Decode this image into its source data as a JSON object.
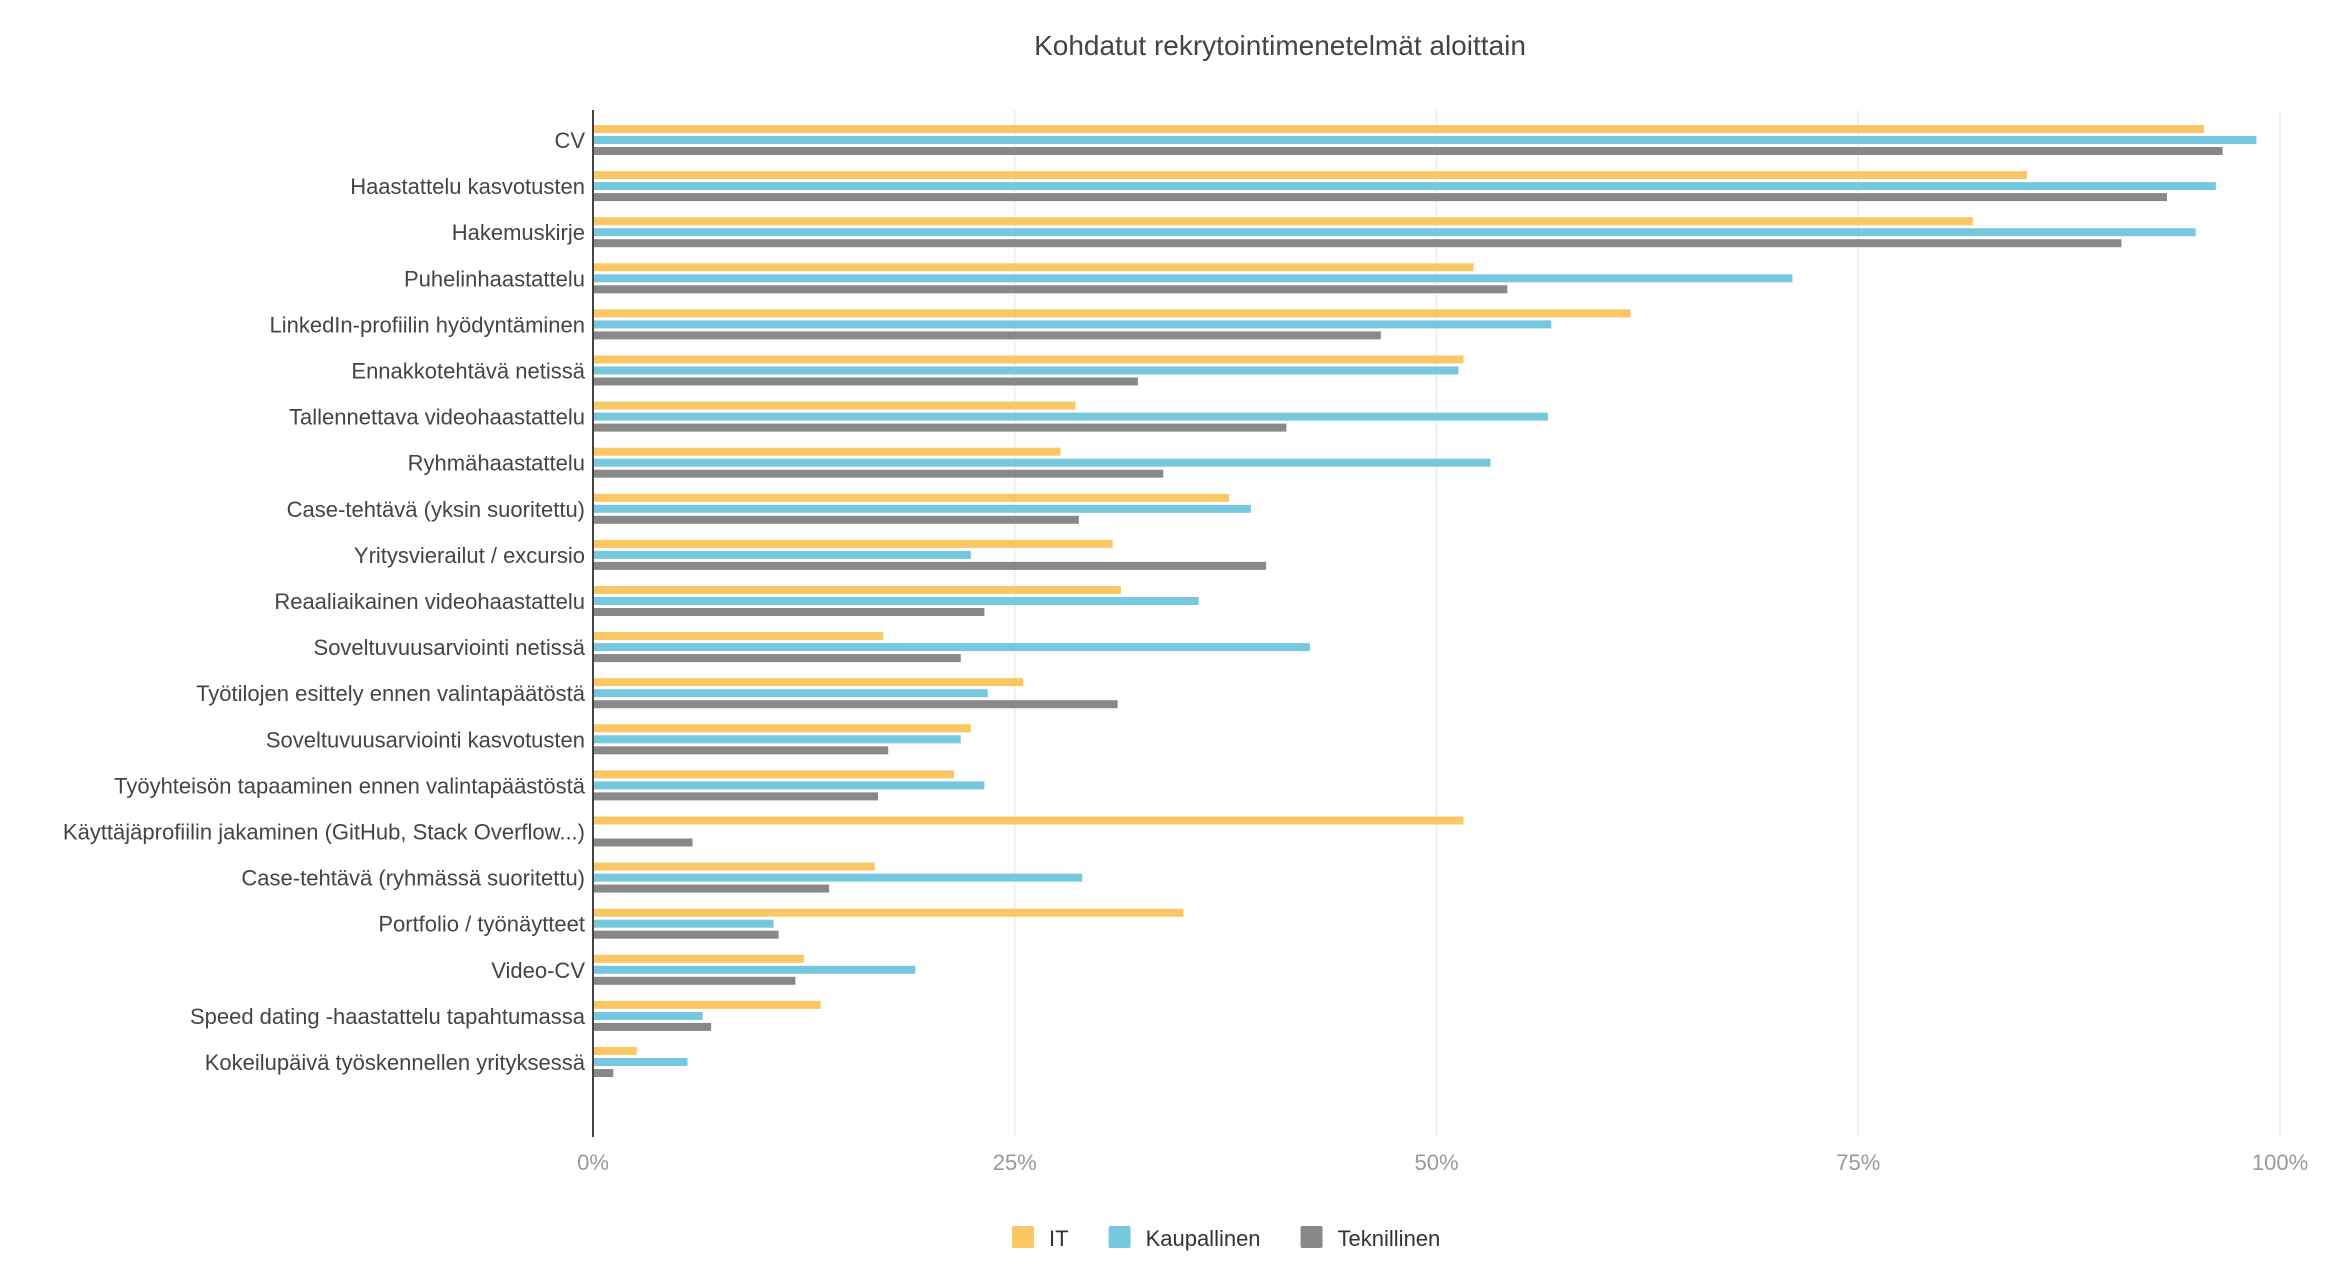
{
  "chart_data": {
    "type": "bar",
    "orientation": "horizontal",
    "title": "Kohdatut rekrytointimenetelmät aloittain",
    "xlabel": "",
    "ylabel": "",
    "xlim": [
      0,
      100
    ],
    "x_ticks": [
      "0%",
      "25%",
      "50%",
      "75%",
      "100%"
    ],
    "grid": true,
    "legend_position": "bottom",
    "categories": [
      "CV",
      "Haastattelu kasvotusten",
      "Hakemuskirje",
      "Puhelinhaastattelu",
      "LinkedIn-profiilin hyödyntäminen",
      "Ennakkotehtävä netissä",
      "Tallennettava videohaastattelu",
      "Ryhmähaastattelu",
      "Case-tehtävä (yksin suoritettu)",
      "Yritysvierailut / excursio",
      "Reaaliaikainen videohaastattelu",
      "Soveltuvuusarviointi netissä",
      "Työtilojen esittely ennen valintapäätöstä",
      "Soveltuvuusarviointi kasvotusten",
      "Työyhteisön tapaaminen ennen valintapäästöstä",
      "Käyttäjäprofiilin jakaminen (GitHub, Stack Overflow...)",
      "Case-tehtävä (ryhmässä suoritettu)",
      "Portfolio / työnäytteet",
      "Video-CV",
      "Speed dating -haastattelu tapahtumassa",
      "Kokeilupäivä työskennellen yrityksessä"
    ],
    "series": [
      {
        "name": "IT",
        "color": "#F9C764",
        "values": [
          95.5,
          85.0,
          81.8,
          52.2,
          61.5,
          51.6,
          28.6,
          27.7,
          37.7,
          30.8,
          31.3,
          17.2,
          25.5,
          22.4,
          21.4,
          51.6,
          16.7,
          35.0,
          12.5,
          13.5,
          2.6
        ]
      },
      {
        "name": "Kaupallinen",
        "color": "#75C8DD",
        "values": [
          98.6,
          96.2,
          95.0,
          71.1,
          56.8,
          51.3,
          56.6,
          53.2,
          39.0,
          22.4,
          35.9,
          42.5,
          23.4,
          21.8,
          23.2,
          0,
          29.0,
          10.7,
          19.1,
          6.5,
          5.6
        ]
      },
      {
        "name": "Teknillinen",
        "color": "#888888",
        "values": [
          96.6,
          93.3,
          90.6,
          54.2,
          46.7,
          32.3,
          41.1,
          33.8,
          28.8,
          39.9,
          23.2,
          21.8,
          31.1,
          17.5,
          16.9,
          5.9,
          14.0,
          11.0,
          12.0,
          7.0,
          1.2
        ]
      }
    ]
  }
}
